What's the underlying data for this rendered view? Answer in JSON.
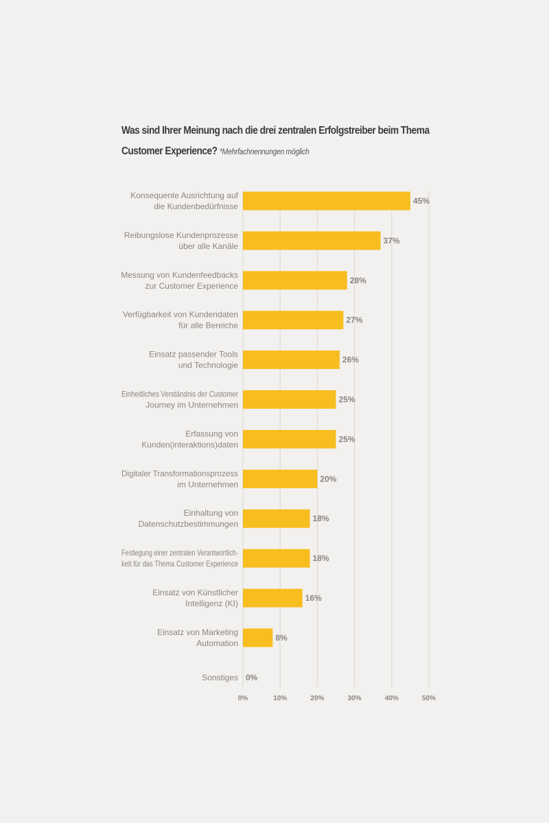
{
  "title": {
    "line1": "Was sind Ihrer Meinung nach die drei zentralen Erfolgstreiber beim Thema",
    "line2": "Customer Experience?",
    "note": "*Mehrfachnennungen möglich"
  },
  "chart_data": {
    "type": "bar",
    "orientation": "horizontal",
    "categories": [
      [
        "Konsequente Ausrichtung auf",
        "die Kundenbedürfnisse"
      ],
      [
        "Reibungslose Kundenprozesse",
        "über alle Kanäle"
      ],
      [
        "Messung von Kundenfeedbacks",
        "zur Customer Experience"
      ],
      [
        "Verfügbarkeit von Kundendaten",
        "für alle Bereiche"
      ],
      [
        "Einsatz passender Tools",
        "und Technologie"
      ],
      [
        "Einheitliches Verständnis der Customer",
        "Journey im Unternehmen"
      ],
      [
        "Erfassung von",
        "Kunden(interaktions)daten"
      ],
      [
        "Digitaler Transformationsprozess",
        "im Unternehmen"
      ],
      [
        "Einhaltung von",
        "Datenschutzbestimmungen"
      ],
      [
        "Festlegung einer zentralen Verantwortlich-",
        "keit für das Thema Customer Experience"
      ],
      [
        "Einsatz von Künstlicher",
        "Intelligenz (KI)"
      ],
      [
        "Einsatz von Marketing",
        "Automation"
      ],
      [
        "Sonstiges"
      ]
    ],
    "values": [
      45,
      37,
      28,
      27,
      26,
      25,
      25,
      20,
      18,
      18,
      16,
      8,
      0
    ],
    "value_labels": [
      "45%",
      "37%",
      "28%",
      "27%",
      "26%",
      "25%",
      "25%",
      "20%",
      "18%",
      "18%",
      "16%",
      "8%",
      "0%"
    ],
    "xlim": [
      0,
      50
    ],
    "xticks": [
      0,
      10,
      20,
      30,
      40,
      50
    ],
    "xtick_labels": [
      "0%",
      "10%",
      "20%",
      "30%",
      "40%",
      "50%"
    ],
    "grid": true,
    "legend": "none",
    "colors": {
      "bar": "#f8bd1f",
      "grid": "#d9d6d1",
      "label": "#8a8580",
      "title": "#3a3a3a"
    }
  }
}
